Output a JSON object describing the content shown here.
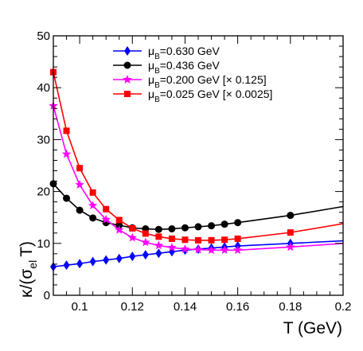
{
  "chart_data": {
    "type": "line",
    "xlabel": "T (GeV)",
    "ylabel": {
      "kappa": "κ/(σ",
      "sigma_sub": "el",
      "T": "T)"
    },
    "xlim": [
      0.09,
      0.2
    ],
    "ylim": [
      0,
      50
    ],
    "x_ticks": [
      0.1,
      0.12,
      0.14,
      0.16,
      0.18,
      0.2
    ],
    "x_tick_labels": [
      "0.1",
      "0.12",
      "0.14",
      "0.16",
      "0.18",
      "0.2"
    ],
    "y_ticks": [
      0,
      10,
      20,
      30,
      40,
      50
    ],
    "y_tick_labels": [
      "0",
      "10",
      "20",
      "30",
      "40",
      "50"
    ],
    "grid": false,
    "legend_position": "top-center",
    "series": [
      {
        "name": "μ_B=0.630 GeV",
        "label_main": "μ",
        "label_sub": "B",
        "label_rest": "=0.630 GeV",
        "color": "#0000ff",
        "marker": "diamond",
        "points": [
          [
            0.09,
            5.5
          ],
          [
            0.095,
            5.8
          ],
          [
            0.1,
            6.1
          ],
          [
            0.105,
            6.5
          ],
          [
            0.11,
            6.8
          ],
          [
            0.115,
            7.1
          ],
          [
            0.12,
            7.5
          ],
          [
            0.125,
            7.8
          ],
          [
            0.13,
            8.1
          ],
          [
            0.135,
            8.4
          ],
          [
            0.14,
            8.7
          ],
          [
            0.145,
            8.9
          ],
          [
            0.15,
            9.1
          ],
          [
            0.155,
            9.3
          ],
          [
            0.16,
            9.5
          ],
          [
            0.18,
            10.0
          ],
          [
            0.2,
            10.5
          ]
        ],
        "marker_x": [
          0.09,
          0.095,
          0.1,
          0.105,
          0.11,
          0.115,
          0.12,
          0.125,
          0.13,
          0.135,
          0.14,
          0.145,
          0.15,
          0.155,
          0.16,
          0.18
        ]
      },
      {
        "name": "μ_B=0.436 GeV",
        "label_main": "μ",
        "label_sub": "B",
        "label_rest": "=0.436 GeV",
        "color": "#000000",
        "marker": "circle",
        "points": [
          [
            0.09,
            21.5
          ],
          [
            0.095,
            18.7
          ],
          [
            0.1,
            16.4
          ],
          [
            0.105,
            14.9
          ],
          [
            0.11,
            14.0
          ],
          [
            0.115,
            13.5
          ],
          [
            0.12,
            13.0
          ],
          [
            0.125,
            12.8
          ],
          [
            0.13,
            12.7
          ],
          [
            0.135,
            12.8
          ],
          [
            0.14,
            13.0
          ],
          [
            0.145,
            13.2
          ],
          [
            0.15,
            13.4
          ],
          [
            0.155,
            13.7
          ],
          [
            0.16,
            14.0
          ],
          [
            0.18,
            15.4
          ],
          [
            0.2,
            17.1
          ]
        ],
        "marker_x": [
          0.09,
          0.095,
          0.1,
          0.105,
          0.11,
          0.115,
          0.12,
          0.125,
          0.13,
          0.135,
          0.14,
          0.145,
          0.15,
          0.155,
          0.16,
          0.18
        ]
      },
      {
        "name": "μ_B=0.200 GeV [× 0.125]",
        "label_main": "μ",
        "label_sub": "B",
        "label_rest": "=0.200 GeV [× 0.125]",
        "color": "#ff00ff",
        "marker": "star",
        "points": [
          [
            0.09,
            36.5
          ],
          [
            0.095,
            27.2
          ],
          [
            0.1,
            21.3
          ],
          [
            0.105,
            17.3
          ],
          [
            0.11,
            14.6
          ],
          [
            0.115,
            12.6
          ],
          [
            0.12,
            11.1
          ],
          [
            0.125,
            10.2
          ],
          [
            0.13,
            9.6
          ],
          [
            0.135,
            9.2
          ],
          [
            0.14,
            8.9
          ],
          [
            0.145,
            8.8
          ],
          [
            0.15,
            8.7
          ],
          [
            0.155,
            8.7
          ],
          [
            0.16,
            8.7
          ],
          [
            0.18,
            9.3
          ],
          [
            0.2,
            10.0
          ]
        ],
        "marker_x": [
          0.09,
          0.095,
          0.1,
          0.105,
          0.11,
          0.115,
          0.12,
          0.125,
          0.13,
          0.135,
          0.14,
          0.145,
          0.15,
          0.155,
          0.16,
          0.18
        ]
      },
      {
        "name": "μ_B=0.025 GeV [× 0.0025]",
        "label_main": "μ",
        "label_sub": "B",
        "label_rest": "=0.025 GeV [× 0.0025]",
        "color": "#ff0000",
        "marker": "square",
        "points": [
          [
            0.09,
            43.0
          ],
          [
            0.095,
            31.7
          ],
          [
            0.1,
            24.5
          ],
          [
            0.105,
            19.8
          ],
          [
            0.11,
            16.6
          ],
          [
            0.115,
            14.5
          ],
          [
            0.12,
            12.9
          ],
          [
            0.125,
            11.9
          ],
          [
            0.13,
            11.3
          ],
          [
            0.135,
            10.9
          ],
          [
            0.14,
            10.7
          ],
          [
            0.145,
            10.6
          ],
          [
            0.15,
            10.6
          ],
          [
            0.155,
            10.7
          ],
          [
            0.16,
            10.9
          ],
          [
            0.18,
            12.1
          ],
          [
            0.2,
            13.8
          ]
        ],
        "marker_x": [
          0.09,
          0.095,
          0.1,
          0.105,
          0.11,
          0.115,
          0.12,
          0.125,
          0.13,
          0.135,
          0.14,
          0.145,
          0.15,
          0.155,
          0.16,
          0.18
        ]
      }
    ]
  }
}
